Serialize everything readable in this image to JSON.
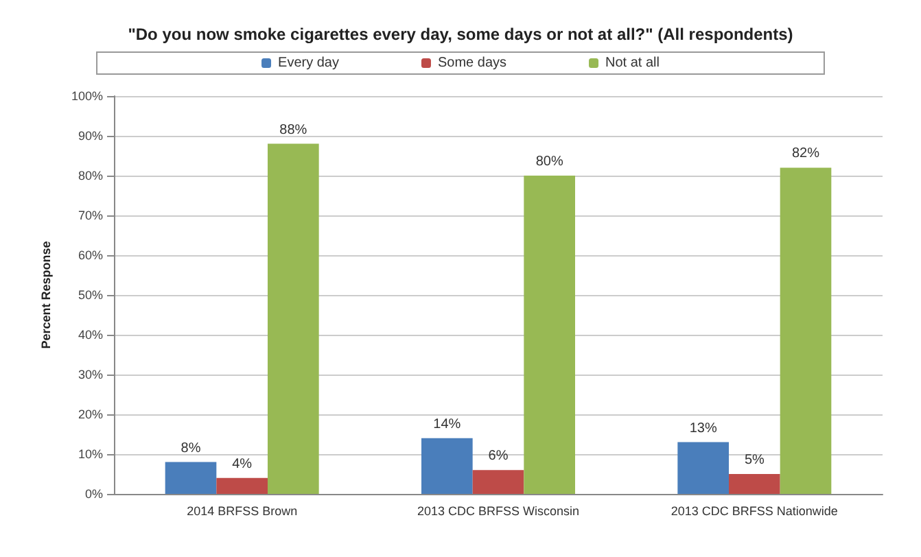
{
  "chart_data": {
    "type": "bar",
    "title": "\"Do you now smoke cigarettes every day, some days or not at all?\" (All respondents)",
    "ylabel": "Percent Response",
    "categories": [
      "2014 BRFSS Brown",
      "2013 CDC BRFSS Wisconsin",
      "2013 CDC BRFSS Nationwide"
    ],
    "series": [
      {
        "name": "Every day",
        "color": "#4a7ebb",
        "values": [
          8,
          14,
          13
        ],
        "value_labels": [
          "8%",
          "14%",
          "13%"
        ]
      },
      {
        "name": "Some days",
        "color": "#be4b48",
        "values": [
          4,
          6,
          5
        ],
        "value_labels": [
          "4%",
          "6%",
          "5%"
        ]
      },
      {
        "name": "Not at all",
        "color": "#98b954",
        "values": [
          88,
          80,
          82
        ],
        "value_labels": [
          "88%",
          "80%",
          "82%"
        ]
      }
    ],
    "ylim": [
      0,
      100
    ],
    "yticks": [
      {
        "value": 0,
        "label": "0%"
      },
      {
        "value": 10,
        "label": "10%"
      },
      {
        "value": 20,
        "label": "20%"
      },
      {
        "value": 30,
        "label": "30%"
      },
      {
        "value": 40,
        "label": "40%"
      },
      {
        "value": 50,
        "label": "50%"
      },
      {
        "value": 60,
        "label": "60%"
      },
      {
        "value": 70,
        "label": "70%"
      },
      {
        "value": 80,
        "label": "80%"
      },
      {
        "value": 90,
        "label": "90%"
      },
      {
        "value": 100,
        "label": "100%"
      }
    ],
    "grid": "y",
    "legend": "top"
  }
}
